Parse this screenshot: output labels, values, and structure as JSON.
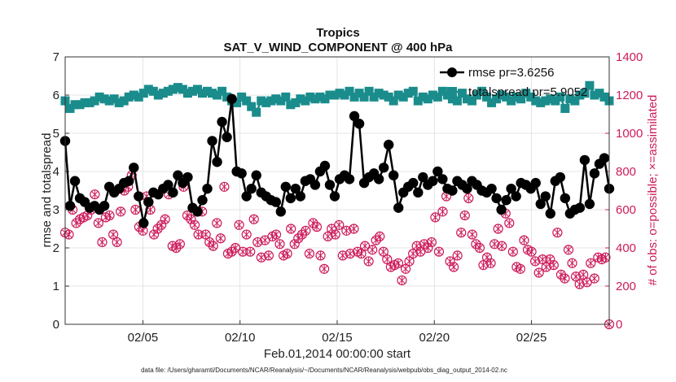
{
  "chart_data": {
    "type": "line",
    "title": "Tropics",
    "subtitle": "SAT_V_WIND_COMPONENT @ 400 hPa",
    "xlabel": "Feb.01,2014 00:00:00 start",
    "ylabel": "rmse and totalspread",
    "ylabel_right": "# of obs: o=possible; ×=assimilated",
    "footnote": "data file: /Users/gharamti/Documents/NCAR/Reanalysis/~/Documents/NCAR/Reanalysis/webpub/obs_diag_output_2014-02.nc",
    "xlim": [
      1.0,
      29.0
    ],
    "ylim": [
      0,
      7
    ],
    "ylim_right": [
      0,
      1400
    ],
    "x_ticks": [
      5,
      10,
      15,
      20,
      25
    ],
    "x_tick_labels": [
      "02/05",
      "02/10",
      "02/15",
      "02/20",
      "02/25"
    ],
    "y_ticks": [
      "0",
      "1",
      "2",
      "3",
      "4",
      "5",
      "6",
      "7"
    ],
    "y_ticks_right": [
      "0",
      "200",
      "400",
      "600",
      "800",
      "1000",
      "1200",
      "1400"
    ],
    "grid": true,
    "legend_position": "top-right",
    "colors": {
      "rmse": "#000000",
      "spread": "#1a8c8c",
      "obs": "#cc1b5b"
    },
    "series": [
      {
        "name": "rmse",
        "legend": "rmse pr=3.6256",
        "axis": "left",
        "values": [
          4.8,
          3.1,
          3.75,
          3.3,
          3.2,
          3.05,
          3.1,
          3.0,
          3.1,
          3.6,
          3.45,
          3.55,
          3.7,
          3.75,
          4.1,
          3.35,
          2.65,
          3.2,
          3.45,
          3.4,
          3.55,
          3.65,
          3.45,
          3.9,
          3.7,
          3.85,
          3.05,
          2.95,
          3.25,
          3.55,
          4.8,
          4.25,
          5.3,
          4.9,
          5.9,
          4.0,
          3.95,
          3.35,
          3.55,
          3.9,
          3.45,
          3.35,
          3.25,
          3.2,
          2.95,
          3.6,
          3.3,
          3.55,
          3.35,
          3.75,
          3.8,
          3.65,
          4.0,
          4.15,
          3.65,
          3.35,
          3.8,
          3.9,
          3.8,
          5.45,
          5.25,
          3.7,
          3.85,
          3.95,
          3.8,
          4.1,
          4.7,
          3.9,
          3.05,
          3.45,
          3.6,
          3.7,
          3.45,
          3.85,
          3.65,
          3.75,
          4.0,
          3.8,
          3.55,
          3.5,
          3.75,
          3.65,
          3.55,
          3.75,
          3.65,
          3.5,
          3.45,
          3.55,
          3.3,
          3.0,
          3.25,
          3.55,
          3.35,
          3.7,
          3.65,
          3.55,
          3.7,
          3.15,
          3.35,
          2.9,
          3.75,
          3.85,
          3.3,
          2.9,
          3.0,
          3.05,
          4.3,
          3.15,
          3.95,
          4.2,
          4.35,
          3.55
        ]
      },
      {
        "name": "totalspread",
        "legend": "totalspread pr=5.9052",
        "axis": "left",
        "values": [
          5.85,
          5.65,
          5.75,
          5.75,
          5.8,
          5.8,
          5.85,
          5.95,
          5.9,
          5.85,
          5.9,
          5.8,
          5.85,
          5.95,
          6.0,
          5.95,
          6.05,
          6.15,
          6.1,
          6.0,
          6.05,
          6.1,
          6.15,
          6.2,
          6.15,
          6.05,
          6.1,
          6.15,
          6.05,
          6.1,
          6.05,
          6.0,
          6.1,
          5.95,
          5.85,
          5.8,
          5.95,
          5.85,
          5.7,
          5.55,
          5.85,
          5.8,
          5.85,
          5.9,
          5.85,
          5.95,
          5.75,
          5.8,
          5.9,
          5.85,
          5.95,
          5.9,
          5.95,
          5.9,
          6.0,
          6.0,
          6.05,
          6.0,
          6.1,
          5.95,
          6.05,
          5.95,
          6.1,
          5.95,
          6.05,
          6.0,
          5.95,
          5.85,
          6.0,
          5.95,
          6.05,
          6.1,
          5.85,
          5.95,
          5.9,
          6.0,
          5.95,
          6.1,
          6.0,
          5.9,
          5.85,
          6.05,
          5.9,
          5.85,
          6.0,
          6.1,
          5.95,
          5.8,
          5.9,
          6.0,
          5.95,
          5.85,
          5.95,
          5.9,
          6.05,
          5.95,
          5.85,
          5.8,
          5.85,
          5.9,
          5.85,
          5.95,
          5.65,
          5.9,
          5.85,
          6.0,
          6.05,
          6.25,
          6.0,
          6.05,
          5.95,
          5.85
        ]
      },
      {
        "name": "# of obs",
        "axis": "right",
        "values": [
          480,
          470,
          600,
          530,
          550,
          560,
          570,
          600,
          680,
          530,
          430,
          560,
          570,
          470,
          430,
          590,
          700,
          720,
          780,
          600,
          510,
          490,
          670,
          600,
          470,
          500,
          520,
          550,
          680,
          410,
          400,
          420,
          720,
          570,
          550,
          520,
          470,
          590,
          470,
          430,
          410,
          530,
          450,
          720,
          370,
          380,
          400,
          520,
          380,
          470,
          380,
          550,
          430,
          350,
          440,
          360,
          460,
          470,
          420,
          360,
          370,
          500,
          420,
          450,
          470,
          490,
          370,
          530,
          510,
          360,
          290,
          460,
          500,
          470,
          520,
          360,
          490,
          370,
          500,
          380,
          370,
          410,
          330,
          390,
          440,
          460,
          380,
          340,
          300,
          310,
          320,
          230,
          290,
          330,
          370,
          410,
          380,
          420,
          400,
          430,
          560,
          380,
          590,
          670,
          330,
          300,
          360,
          480,
          570,
          660,
          470,
          420,
          400,
          310,
          350,
          320,
          420,
          500,
          410,
          580,
          530,
          380,
          300,
          290,
          440,
          390,
          380,
          330,
          270,
          340,
          300,
          340,
          310,
          480,
          260,
          240,
          390,
          320,
          250,
          210,
          260,
          220,
          320,
          240,
          350,
          340,
          350,
          0
        ]
      }
    ]
  }
}
